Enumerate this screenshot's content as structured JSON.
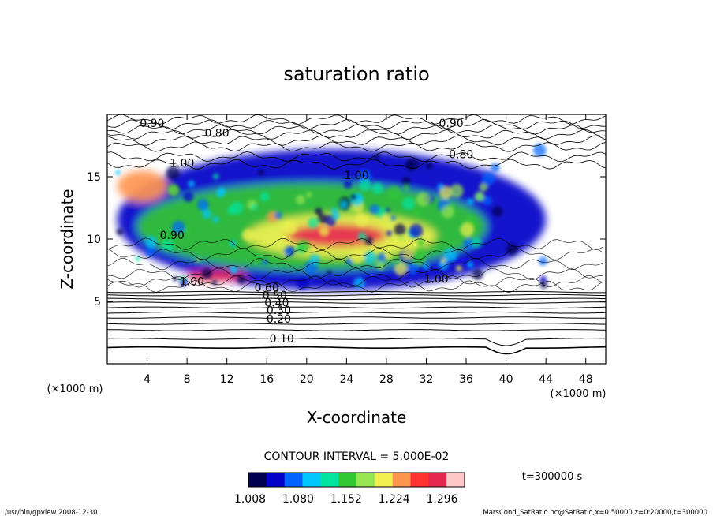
{
  "chart_data": {
    "type": "heatmap",
    "title": "saturation ratio",
    "xlabel": "X-coordinate",
    "ylabel": "Z-coordinate",
    "x_unit": "(×1000 m)",
    "y_unit": "(×1000 m)",
    "xlim": [
      0,
      50
    ],
    "ylim": [
      0,
      20
    ],
    "x_ticks": [
      4,
      8,
      12,
      16,
      20,
      24,
      28,
      32,
      36,
      40,
      44,
      48
    ],
    "y_ticks": [
      5,
      10,
      15
    ],
    "contour_interval_text": "CONTOUR INTERVAL = 5.000E-02",
    "time_text": "t=300000 s",
    "colorbar": {
      "min": 1.008,
      "max": 1.332,
      "tick_labels": [
        "1.008",
        "1.080",
        "1.152",
        "1.224",
        "1.296"
      ],
      "colors": [
        "#000050",
        "#0000c8",
        "#0064ff",
        "#00c8ff",
        "#00e6a0",
        "#32c832",
        "#96e650",
        "#f0f050",
        "#ff9650",
        "#ff3232",
        "#e62850",
        "#ffc8c8"
      ]
    },
    "contour_labels": [
      {
        "text": "0.10",
        "x": 17.5,
        "y": 1.7
      },
      {
        "text": "0.20",
        "x": 17.2,
        "y": 3.3
      },
      {
        "text": "0.30",
        "x": 17.2,
        "y": 4.0
      },
      {
        "text": "0.40",
        "x": 17.0,
        "y": 4.6
      },
      {
        "text": "0.50",
        "x": 16.8,
        "y": 5.2
      },
      {
        "text": "0.60",
        "x": 16.0,
        "y": 5.8
      },
      {
        "text": "0.80",
        "x": 11.0,
        "y": 18.2
      },
      {
        "text": "0.80",
        "x": 35.5,
        "y": 16.5
      },
      {
        "text": "0.90",
        "x": 4.5,
        "y": 19.0
      },
      {
        "text": "0.90",
        "x": 34.5,
        "y": 19.0
      },
      {
        "text": "0.90",
        "x": 6.5,
        "y": 10.0
      },
      {
        "text": "1.00",
        "x": 7.5,
        "y": 15.8
      },
      {
        "text": "1.00",
        "x": 25.0,
        "y": 14.8
      },
      {
        "text": "1.00",
        "x": 8.5,
        "y": 6.3
      },
      {
        "text": "1.00",
        "x": 33.0,
        "y": 6.5
      }
    ],
    "regions": [
      {
        "level": 1.05,
        "x": [
          1,
          44
        ],
        "y": [
          5.9,
          17.2
        ]
      },
      {
        "level": 1.15,
        "x": [
          3,
          38
        ],
        "y": [
          7.5,
          14.5
        ]
      },
      {
        "level": 1.22,
        "x": [
          14,
          33
        ],
        "y": [
          8.5,
          12.0
        ]
      },
      {
        "level": 1.29,
        "x": [
          18,
          28
        ],
        "y": [
          9.4,
          11.2
        ]
      },
      {
        "level": 1.3,
        "x": [
          8,
          14
        ],
        "y": [
          6.6,
          7.5
        ]
      },
      {
        "level": 1.25,
        "x": [
          1,
          6
        ],
        "y": [
          13.0,
          15.5
        ]
      }
    ]
  },
  "footer": {
    "left": "/usr/bin/gpview   2008-12-30",
    "right": "MarsCond_SatRatio.nc@SatRatio,x=0:50000,z=0:20000,t=300000"
  }
}
